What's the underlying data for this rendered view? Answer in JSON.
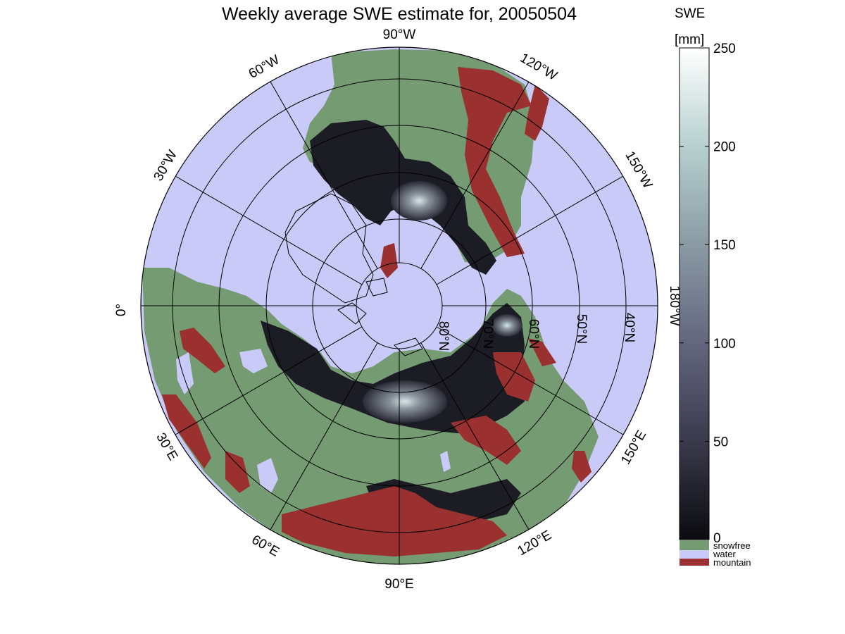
{
  "title": "Weekly average SWE estimate for, 20050504",
  "longitude_labels": [
    "90°W",
    "60°W",
    "120°W",
    "30°W",
    "150°W",
    "0°",
    "180°W",
    "30°E",
    "150°E",
    "60°E",
    "120°E",
    "90°E"
  ],
  "latitude_labels": [
    "80°N",
    "70°N",
    "60°N",
    "50°N",
    "40°N"
  ],
  "colorbar": {
    "label_line1": "SWE",
    "label_line2": "[mm]",
    "ticks": [
      "0",
      "50",
      "100",
      "150",
      "200",
      "250"
    ],
    "range": [
      0,
      250
    ],
    "categories": [
      {
        "name": "snowfree",
        "color": "#759b73"
      },
      {
        "name": "water",
        "color": "#cacaf8"
      },
      {
        "name": "mountain",
        "color": "#9a3030"
      }
    ]
  },
  "colors": {
    "water": "#cacaf8",
    "snowfree": "#759b73",
    "mountain": "#9a3030",
    "swe_low": "#0b0b10",
    "swe_high": "#ffffff"
  }
}
